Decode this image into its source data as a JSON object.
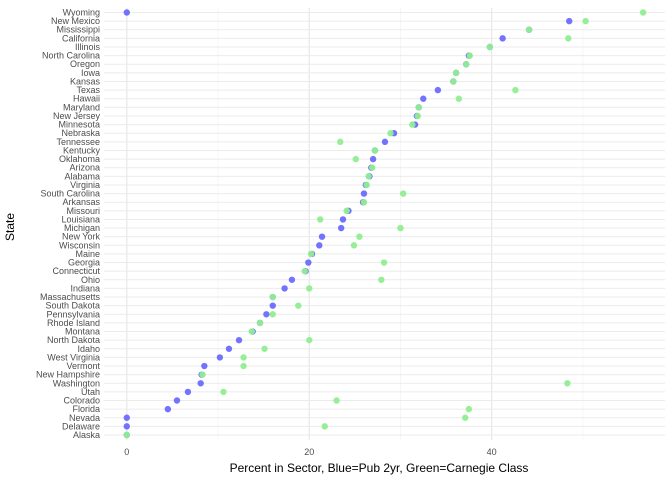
{
  "chart_data": {
    "type": "scatter",
    "title": "",
    "xlabel": "Percent in Sector, Blue=Pub 2yr, Green=Carnegie Class",
    "ylabel": "State",
    "xlim": [
      -2.5,
      59
    ],
    "x_ticks": [
      0,
      20,
      40
    ],
    "grid": true,
    "colors": {
      "blue": "#6b6bff",
      "green": "#90ee90"
    },
    "categories": [
      "Alaska",
      "Delaware",
      "Nevada",
      "Florida",
      "Colorado",
      "Utah",
      "Washington",
      "New Hampshire",
      "Vermont",
      "West Virginia",
      "Idaho",
      "North Dakota",
      "Montana",
      "Rhode Island",
      "Pennsylvania",
      "South Dakota",
      "Massachusetts",
      "Indiana",
      "Ohio",
      "Connecticut",
      "Georgia",
      "Maine",
      "Wisconsin",
      "New York",
      "Michigan",
      "Louisiana",
      "Missouri",
      "Arkansas",
      "South Carolina",
      "Virginia",
      "Alabama",
      "Arizona",
      "Oklahoma",
      "Kentucky",
      "Tennessee",
      "Nebraska",
      "Minnesota",
      "New Jersey",
      "Maryland",
      "Hawaii",
      "Texas",
      "Kansas",
      "Iowa",
      "Oregon",
      "North Carolina",
      "Illinois",
      "California",
      "Mississippi",
      "New Mexico",
      "Wyoming"
    ],
    "series": [
      {
        "color": "blue",
        "values": [
          0,
          0,
          0,
          4.5,
          5.5,
          6.7,
          8.1,
          8.2,
          8.5,
          10.2,
          11.2,
          12.3,
          13.8,
          14.6,
          15.3,
          16,
          16,
          17.3,
          18.1,
          19.6,
          19.9,
          20.3,
          21.1,
          21.4,
          23.5,
          23.7,
          24.3,
          25.9,
          26,
          26.2,
          26.6,
          26.8,
          27,
          27.2,
          28.3,
          29.3,
          31.6,
          31.8,
          32,
          32.5,
          34.1,
          35.8,
          36.1,
          37.2,
          37.5,
          39.8,
          41.2,
          44.1,
          48.5,
          0
        ]
      },
      {
        "color": "green",
        "values": [
          0,
          21.7,
          37.1,
          37.5,
          23,
          10.6,
          48.3,
          8.3,
          12.8,
          12.8,
          15.1,
          20,
          13.7,
          14.6,
          16,
          18.8,
          16,
          20,
          27.9,
          19.5,
          28.2,
          20.2,
          24.9,
          25.5,
          30,
          21.2,
          24.1,
          26,
          30.3,
          26.3,
          26.5,
          26.9,
          25.1,
          27.2,
          23.4,
          28.9,
          31.3,
          31.9,
          32,
          36.4,
          42.6,
          35.8,
          36.1,
          37.2,
          37.6,
          39.8,
          48.4,
          44.1,
          50.3,
          56.6
        ]
      }
    ]
  }
}
